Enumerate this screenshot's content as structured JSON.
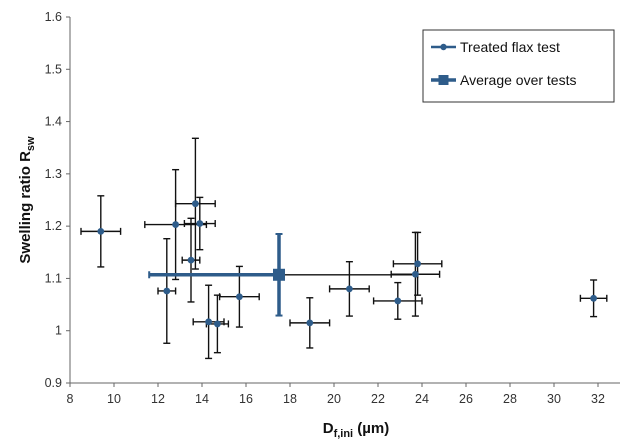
{
  "chart_data": {
    "type": "scatter",
    "xlim": [
      8,
      33
    ],
    "ylim": [
      0.9,
      1.6
    ],
    "x_ticks": [
      "8",
      "10",
      "12",
      "14",
      "16",
      "18",
      "20",
      "22",
      "24",
      "26",
      "28",
      "30",
      "32"
    ],
    "y_ticks": [
      "0.9",
      "1",
      "1.1",
      "1.2",
      "1.3",
      "1.4",
      "1.5",
      "1.6"
    ],
    "xlabel": {
      "main": "D",
      "sub": "f,ini",
      "unit": " (µm)"
    },
    "ylabel": {
      "main": "Swelling ratio R",
      "sub": "sw"
    },
    "grid": false,
    "legend_position": "top-right",
    "colors": {
      "series": "#2e5c8a",
      "errorbar": "#111111",
      "axis": "#666666"
    },
    "series": [
      {
        "name": "Treated flax test",
        "marker": "circle",
        "points": [
          {
            "x": 9.4,
            "y": 1.19,
            "xerr": 0.9,
            "yerr": 0.068
          },
          {
            "x": 12.4,
            "y": 1.076,
            "xerr": 0.4,
            "yerr": 0.1
          },
          {
            "x": 12.8,
            "y": 1.203,
            "xerr": 1.4,
            "yerr": 0.105
          },
          {
            "x": 13.5,
            "y": 1.135,
            "xerr": 0.4,
            "yerr": 0.08
          },
          {
            "x": 13.7,
            "y": 1.243,
            "xerr": 0.9,
            "yerr": 0.125
          },
          {
            "x": 13.9,
            "y": 1.205,
            "xerr": 0.7,
            "yerr": 0.05
          },
          {
            "x": 14.3,
            "y": 1.017,
            "xerr": 0.7,
            "yerr": 0.07
          },
          {
            "x": 14.7,
            "y": 1.013,
            "xerr": 0.5,
            "yerr": 0.055
          },
          {
            "x": 15.7,
            "y": 1.065,
            "xerr": 0.9,
            "yerr": 0.058
          },
          {
            "x": 18.9,
            "y": 1.015,
            "xerr": 0.9,
            "yerr": 0.048
          },
          {
            "x": 20.7,
            "y": 1.08,
            "xerr": 0.9,
            "yerr": 0.052
          },
          {
            "x": 22.9,
            "y": 1.057,
            "xerr": 1.1,
            "yerr": 0.035
          },
          {
            "x": 23.7,
            "y": 1.108,
            "xerr": 1.1,
            "yerr": 0.08
          },
          {
            "x": 23.8,
            "y": 1.128,
            "xerr": 1.1,
            "yerr": 0.06
          },
          {
            "x": 31.8,
            "y": 1.062,
            "xerr": 0.6,
            "yerr": 0.035
          }
        ]
      },
      {
        "name": "Average over tests",
        "marker": "square",
        "points": [
          {
            "x": 17.5,
            "y": 1.107,
            "xerr_low": 5.9,
            "xerr_high": 6.3,
            "yerr": 0.078
          }
        ]
      }
    ]
  }
}
